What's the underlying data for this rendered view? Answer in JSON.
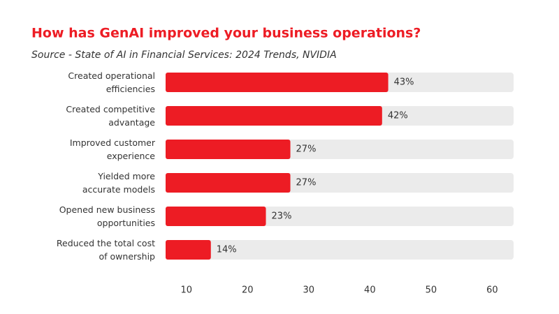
{
  "chart_data": {
    "type": "bar",
    "orientation": "horizontal",
    "title": "How has GenAI improved your business operations?",
    "subtitle": "Source - State of AI in Financial Services: 2024 Trends, NVIDIA",
    "categories": [
      "Created operational\nefficiencies",
      "Created competitive\nadvantage",
      "Improved customer\nexperience",
      "Yielded more\naccurate models",
      "Opened new business\nopportunities",
      "Reduced the total cost\nof ownership"
    ],
    "values": [
      43,
      42,
      27,
      27,
      23,
      14
    ],
    "value_labels": [
      "43%",
      "42%",
      "27%",
      "27%",
      "23%",
      "14%"
    ],
    "color": "#ed1c24",
    "track_color": "#ebebeb",
    "xlim": [
      6.6,
      63.5
    ],
    "xticks": [
      10,
      20,
      30,
      40,
      50,
      60
    ],
    "grid": false
  }
}
